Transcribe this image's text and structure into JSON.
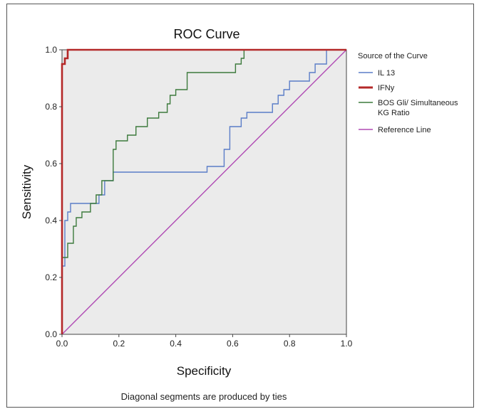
{
  "chart_data": {
    "type": "line",
    "title": "ROC Curve",
    "xlabel": "Specificity",
    "ylabel": "Sensitivity",
    "xlim": [
      0,
      1
    ],
    "ylim": [
      0,
      1
    ],
    "xticks": [
      "0.0",
      "0.2",
      "0.4",
      "0.6",
      "0.8",
      "1.0"
    ],
    "yticks": [
      "0.0",
      "0.2",
      "0.4",
      "0.6",
      "0.8",
      "1.0"
    ],
    "grid": false,
    "legend_title": "Source of the Curve",
    "legend_position": "right",
    "footnote": "Diagonal segments are produced by ties",
    "background_color": "#ebebeb",
    "series": [
      {
        "name": "IL 13",
        "color": "#5b7dc8",
        "x": [
          0,
          0,
          0.01,
          0.01,
          0.02,
          0.02,
          0.03,
          0.03,
          0.05,
          0.05,
          0.13,
          0.13,
          0.15,
          0.15,
          0.18,
          0.18,
          0.51,
          0.51,
          0.57,
          0.57,
          0.59,
          0.59,
          0.63,
          0.63,
          0.65,
          0.65,
          0.74,
          0.74,
          0.76,
          0.76,
          0.78,
          0.78,
          0.8,
          0.8,
          0.87,
          0.87,
          0.89,
          0.89,
          0.93,
          0.93,
          1.0
        ],
        "y": [
          0,
          0.24,
          0.24,
          0.4,
          0.4,
          0.43,
          0.43,
          0.46,
          0.46,
          0.46,
          0.46,
          0.49,
          0.49,
          0.54,
          0.54,
          0.57,
          0.57,
          0.59,
          0.59,
          0.65,
          0.65,
          0.73,
          0.73,
          0.76,
          0.76,
          0.78,
          0.78,
          0.81,
          0.81,
          0.84,
          0.84,
          0.86,
          0.86,
          0.89,
          0.89,
          0.92,
          0.92,
          0.95,
          0.95,
          1.0,
          1.0
        ]
      },
      {
        "name": "IFNy",
        "color": "#b42828",
        "x": [
          0,
          0,
          0.01,
          0.01,
          0.02,
          0.02,
          1.0
        ],
        "y": [
          0,
          0.95,
          0.95,
          0.97,
          0.97,
          1.0,
          1.0
        ]
      },
      {
        "name": "BOS Gli/ Simultaneous KG Ratio",
        "color": "#3c7a3c",
        "x": [
          0,
          0,
          0.02,
          0.02,
          0.04,
          0.04,
          0.05,
          0.05,
          0.07,
          0.07,
          0.1,
          0.1,
          0.12,
          0.12,
          0.14,
          0.14,
          0.18,
          0.18,
          0.19,
          0.19,
          0.23,
          0.23,
          0.26,
          0.26,
          0.3,
          0.3,
          0.34,
          0.34,
          0.37,
          0.37,
          0.38,
          0.38,
          0.4,
          0.4,
          0.44,
          0.44,
          0.61,
          0.61,
          0.63,
          0.63,
          0.64,
          0.64,
          1.0
        ],
        "y": [
          0,
          0.27,
          0.27,
          0.32,
          0.32,
          0.38,
          0.38,
          0.41,
          0.41,
          0.43,
          0.43,
          0.46,
          0.46,
          0.49,
          0.49,
          0.54,
          0.54,
          0.65,
          0.65,
          0.68,
          0.68,
          0.7,
          0.7,
          0.73,
          0.73,
          0.76,
          0.76,
          0.78,
          0.78,
          0.81,
          0.81,
          0.84,
          0.84,
          0.86,
          0.86,
          0.92,
          0.92,
          0.95,
          0.95,
          0.97,
          0.97,
          1.0,
          1.0
        ]
      },
      {
        "name": "Reference Line",
        "color": "#b04ab4",
        "x": [
          0,
          1
        ],
        "y": [
          0,
          1
        ]
      }
    ]
  }
}
